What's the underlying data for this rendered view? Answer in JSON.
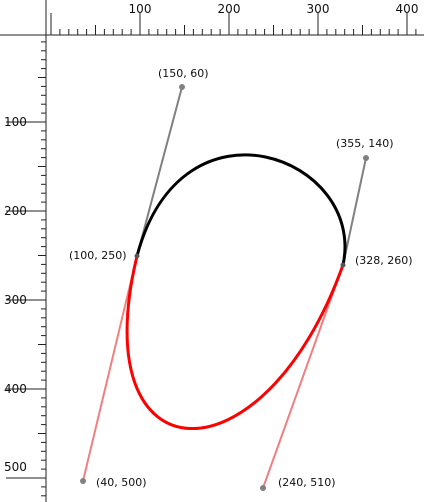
{
  "ruler": {
    "x_labels": [
      "100",
      "200",
      "300",
      "400"
    ],
    "y_labels": [
      "100",
      "200",
      "300",
      "400",
      "500"
    ]
  },
  "curve_colors": {
    "upper_path": "#000000",
    "lower_path": "#ff0000",
    "upper_handles": "#808080",
    "lower_handles": "#f08080"
  },
  "points": {
    "p_left": "(100, 250)",
    "p_right": "(328, 260)",
    "handle_top_left": "(150, 60)",
    "handle_top_right": "(355, 140)",
    "handle_bottom_left": "(40, 500)",
    "handle_bottom_right": "(240, 510)"
  }
}
